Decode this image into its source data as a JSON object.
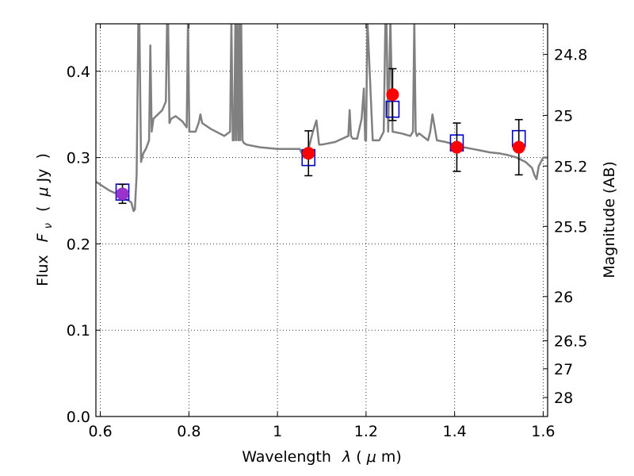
{
  "chart_data": {
    "type": "scatter",
    "xlabel": "Wavelength",
    "xlabel_symbol": "λ",
    "xlabel_unit_open": " (",
    "xlabel_unit_mu": "μ",
    "xlabel_unit_rest": "m)",
    "ylabel_word": "Flux",
    "ylabel_symbol": "F",
    "ylabel_subscript": "ν",
    "ylabel_unit_open": "(",
    "ylabel_unit_mu": "μ",
    "ylabel_unit_rest": "Jy",
    "ylabel_unit_close": ")",
    "ylabel_right": "Magnitude (AB)",
    "xlim": [
      0.59,
      1.61
    ],
    "ylim": [
      0.0,
      0.455
    ],
    "x_ticks": [
      0.6,
      0.8,
      1.0,
      1.2,
      1.4,
      1.6
    ],
    "x_tick_labels": [
      "0.6",
      "0.8",
      "1",
      "1.2",
      "1.4",
      "1.6"
    ],
    "y_ticks": [
      0.0,
      0.1,
      0.2,
      0.3,
      0.4
    ],
    "y_tick_labels": [
      "0.0",
      "0.1",
      "0.2",
      "0.3",
      "0.4"
    ],
    "y_right_ticks": [
      {
        "label": "24.8",
        "flux": 0.4195
      },
      {
        "label": "25",
        "flux": 0.3489
      },
      {
        "label": "25.2",
        "flux": 0.2902
      },
      {
        "label": "25.5",
        "flux": 0.2203
      },
      {
        "label": "26",
        "flux": 0.139
      },
      {
        "label": "26.5",
        "flux": 0.0877
      },
      {
        "label": "27",
        "flux": 0.0553
      },
      {
        "label": "28",
        "flux": 0.022
      }
    ],
    "grid": true,
    "series": [
      {
        "kind": "model_spectrum",
        "color": "#808080",
        "x": [
          0.59,
          0.62,
          0.65,
          0.67,
          0.675,
          0.678,
          0.682,
          0.686,
          0.688,
          0.692,
          0.697,
          0.703,
          0.71,
          0.713,
          0.716,
          0.72,
          0.73,
          0.74,
          0.748,
          0.752,
          0.756,
          0.76,
          0.77,
          0.785,
          0.795,
          0.798,
          0.801,
          0.806,
          0.815,
          0.822,
          0.826,
          0.83,
          0.85,
          0.88,
          0.893,
          0.896,
          0.899,
          0.902,
          0.905,
          0.907,
          0.909,
          0.912,
          0.914,
          0.916,
          0.918,
          0.921,
          0.924,
          0.93,
          0.96,
          1.0,
          1.03,
          1.05,
          1.06,
          1.07,
          1.08,
          1.088,
          1.094,
          1.1,
          1.13,
          1.16,
          1.163,
          1.166,
          1.17,
          1.18,
          1.19,
          1.195,
          1.198,
          1.2,
          1.203,
          1.215,
          1.23,
          1.24,
          1.245,
          1.25,
          1.255,
          1.26,
          1.28,
          1.3,
          1.306,
          1.309,
          1.312,
          1.315,
          1.32,
          1.34,
          1.345,
          1.35,
          1.36,
          1.38,
          1.4,
          1.42,
          1.44,
          1.46,
          1.48,
          1.5,
          1.52,
          1.54,
          1.56,
          1.575,
          1.58,
          1.585,
          1.59,
          1.6,
          1.61
        ],
        "y": [
          0.272,
          0.262,
          0.255,
          0.248,
          0.238,
          0.24,
          0.28,
          0.46,
          0.46,
          0.295,
          0.305,
          0.31,
          0.32,
          0.43,
          0.33,
          0.345,
          0.35,
          0.355,
          0.365,
          0.5,
          0.34,
          0.345,
          0.348,
          0.342,
          0.335,
          0.46,
          0.33,
          0.33,
          0.33,
          0.34,
          0.35,
          0.34,
          0.333,
          0.325,
          0.33,
          0.46,
          0.32,
          0.32,
          0.46,
          0.32,
          0.46,
          0.32,
          0.46,
          0.32,
          0.46,
          0.32,
          0.317,
          0.315,
          0.312,
          0.31,
          0.31,
          0.31,
          0.3,
          0.31,
          0.33,
          0.343,
          0.315,
          0.315,
          0.318,
          0.325,
          0.355,
          0.325,
          0.322,
          0.322,
          0.345,
          0.38,
          0.32,
          0.32,
          0.46,
          0.32,
          0.32,
          0.33,
          0.5,
          0.33,
          0.46,
          0.33,
          0.328,
          0.325,
          0.33,
          0.46,
          0.33,
          0.325,
          0.328,
          0.32,
          0.33,
          0.35,
          0.32,
          0.318,
          0.315,
          0.312,
          0.31,
          0.308,
          0.306,
          0.305,
          0.303,
          0.3,
          0.295,
          0.288,
          0.28,
          0.275,
          0.29,
          0.3,
          0.3
        ]
      },
      {
        "kind": "model_photometry",
        "marker": "open-square",
        "color": "#0000cc",
        "x": [
          0.65,
          1.07,
          1.26,
          1.405,
          1.545
        ],
        "y": [
          0.26,
          0.3,
          0.356,
          0.317,
          0.322
        ]
      },
      {
        "kind": "observed_photometry",
        "marker": "filled-circle",
        "colors": [
          "#9933cc",
          "#ff0000",
          "#ff0000",
          "#ff0000",
          "#ff0000"
        ],
        "x": [
          0.65,
          1.07,
          1.26,
          1.405,
          1.545
        ],
        "y": [
          0.258,
          0.305,
          0.373,
          0.312,
          0.312
        ],
        "yerr": [
          0.011,
          0.026,
          0.03,
          0.028,
          0.032
        ]
      }
    ]
  }
}
